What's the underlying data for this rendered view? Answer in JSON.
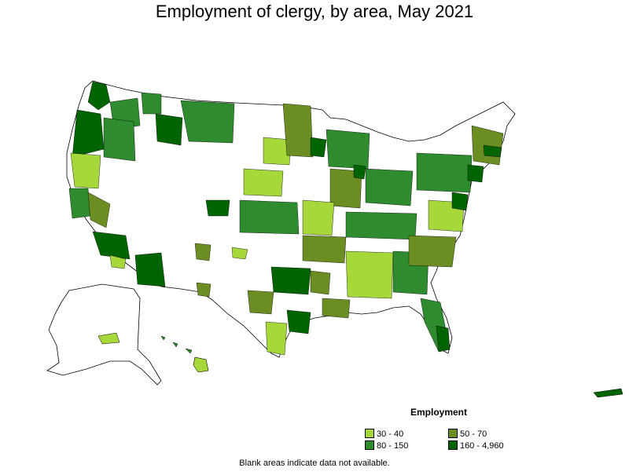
{
  "title": "Employment of clergy, by area, May 2021",
  "legend": {
    "title": "Employment",
    "items": [
      {
        "label": "30 - 40",
        "color": "#a6d83a"
      },
      {
        "label": "50 - 70",
        "color": "#6b8e23"
      },
      {
        "label": "80 - 150",
        "color": "#2e8b2e"
      },
      {
        "label": "160 - 4,960",
        "color": "#006400"
      }
    ]
  },
  "footnote": "Blank areas indicate data not available.",
  "colors": {
    "blank": "#ffffff",
    "border": "#000000"
  }
}
